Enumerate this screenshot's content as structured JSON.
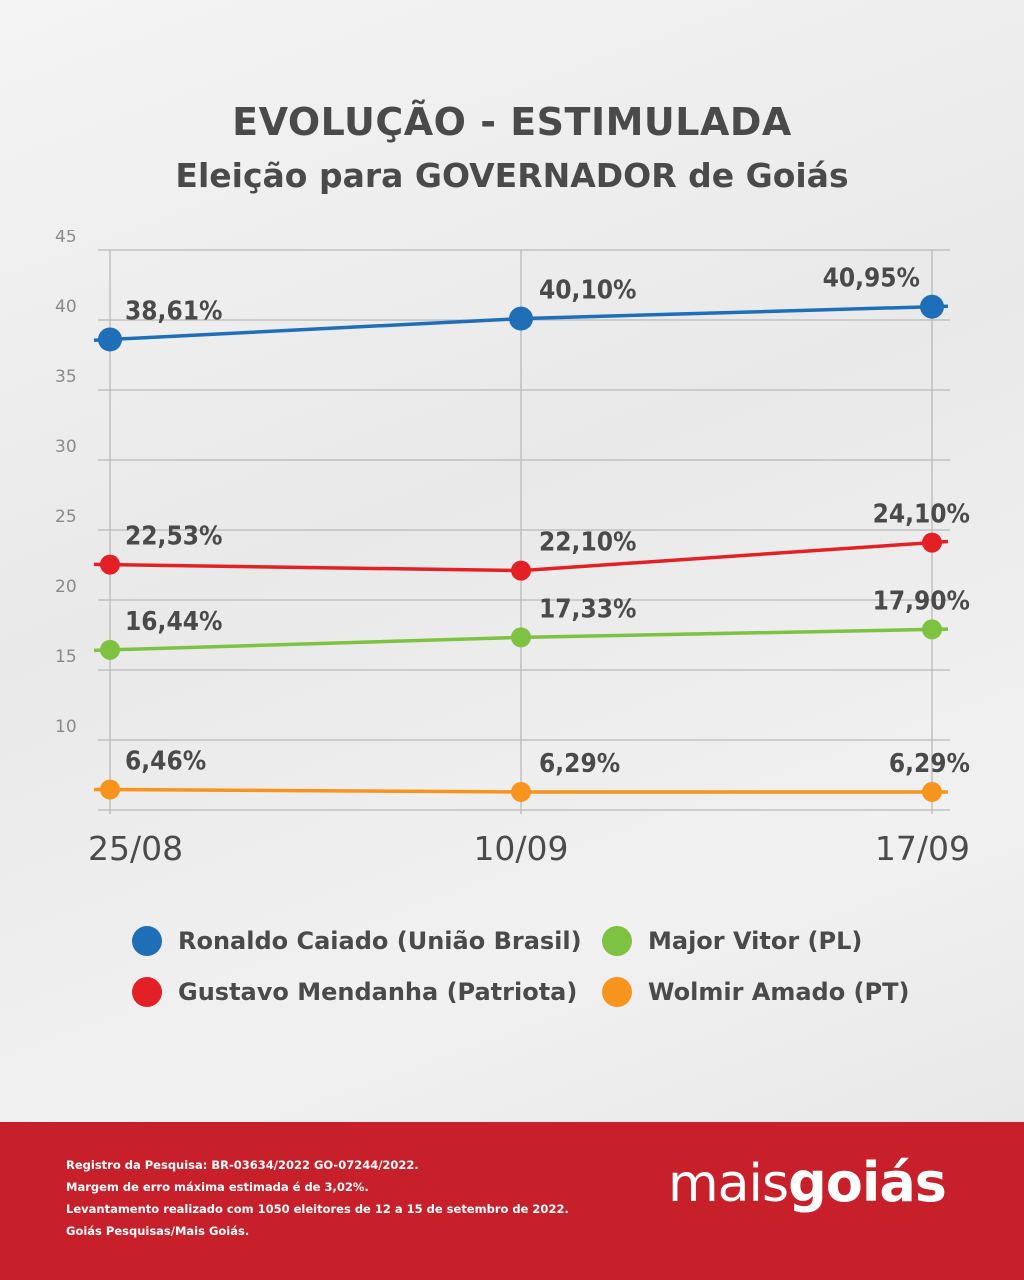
{
  "header": {
    "title": "EVOLUÇÃO - ESTIMULADA",
    "subtitle": "Eleição para GOVERNADOR de Goiás"
  },
  "chart_data": {
    "type": "line",
    "categories": [
      "25/08",
      "10/09",
      "17/09"
    ],
    "ylim": [
      5,
      45
    ],
    "yticks": [
      10,
      15,
      20,
      25,
      30,
      35,
      40,
      45
    ],
    "grid": true,
    "legend_position": "bottom",
    "series": [
      {
        "name": "Ronaldo Caiado (União Brasil)",
        "color": "#1f6fb8",
        "values": [
          38.61,
          40.1,
          40.95
        ],
        "labels": [
          "38,61%",
          "40,10%",
          "40,95%"
        ]
      },
      {
        "name": "Gustavo Mendanha (Patriota)",
        "color": "#e32026",
        "values": [
          22.53,
          22.1,
          24.1
        ],
        "labels": [
          "22,53%",
          "22,10%",
          "24,10%"
        ]
      },
      {
        "name": "Major Vitor (PL)",
        "color": "#7ec242",
        "values": [
          16.44,
          17.33,
          17.9
        ],
        "labels": [
          "16,44%",
          "17,33%",
          "17,90%"
        ]
      },
      {
        "name": "Wolmir Amado (PT)",
        "color": "#f7941d",
        "values": [
          6.46,
          6.29,
          6.29
        ],
        "labels": [
          "6,46%",
          "6,29%",
          "6,29%"
        ]
      }
    ]
  },
  "legend": {
    "items": [
      {
        "label": "Ronaldo Caiado (União Brasil)",
        "color": "#1f6fb8"
      },
      {
        "label": "Major Vitor (PL)",
        "color": "#7ec242"
      },
      {
        "label": "Gustavo Mendanha (Patriota)",
        "color": "#e32026"
      },
      {
        "label": "Wolmir Amado (PT)",
        "color": "#f7941d"
      }
    ]
  },
  "footer": {
    "lines": [
      "Registro da Pesquisa: BR-03634/2022 GO-07244/2022.",
      "Margem de erro máxima estimada é de 3,02%.",
      "Levantamento realizado com 1050 eleitores de 12 a 15 de setembro de 2022.",
      "Goiás Pesquisas/Mais Goiás."
    ],
    "logo_part1": "mais",
    "logo_part2": "goiás"
  }
}
